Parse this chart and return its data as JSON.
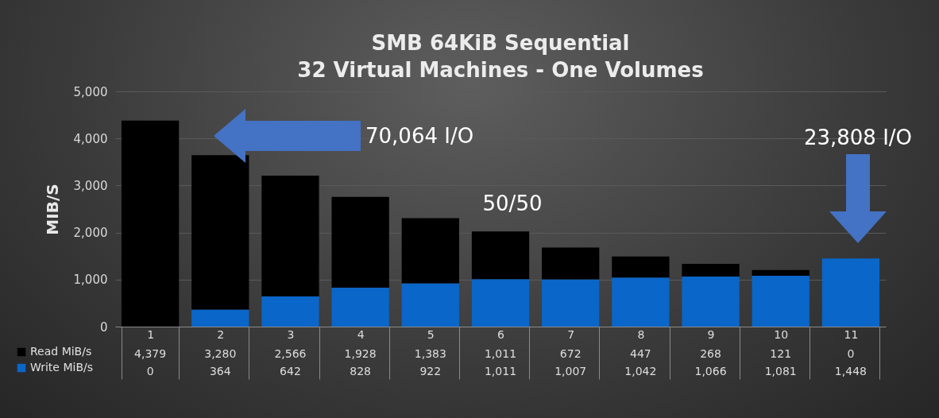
{
  "chart_data": {
    "type": "bar",
    "title": "SMB 64KiB Sequential",
    "subtitle": "32 Virtual Machines - One Volumes",
    "ylabel": "MIB/S",
    "categories": [
      "1",
      "2",
      "3",
      "4",
      "5",
      "6",
      "7",
      "8",
      "9",
      "10",
      "11"
    ],
    "stacked": true,
    "series": [
      {
        "name": "Write MiB/s",
        "color": "#0a66c8",
        "values": [
          0,
          364,
          642,
          828,
          922,
          1011,
          1007,
          1042,
          1066,
          1081,
          1448
        ],
        "value_labels": [
          "0",
          "364",
          "642",
          "828",
          "922",
          "1,011",
          "1,007",
          "1,042",
          "1,066",
          "1,081",
          "1,448"
        ]
      },
      {
        "name": "Read MiB/s",
        "color": "#000000",
        "values": [
          4379,
          3280,
          2566,
          1928,
          1383,
          1011,
          672,
          447,
          268,
          121,
          0
        ],
        "value_labels": [
          "4,379",
          "3,280",
          "2,566",
          "1,928",
          "1,383",
          "1,011",
          "672",
          "447",
          "268",
          "121",
          "0"
        ]
      }
    ],
    "ylim": [
      0,
      5000
    ],
    "yticks": [
      0,
      {
        "value": 1000,
        "label": "1,000"
      },
      {
        "value": 2000,
        "label": "2,000"
      },
      {
        "value": 3000,
        "label": "3,000"
      },
      {
        "value": 4000,
        "label": "4,000"
      },
      {
        "value": 5000,
        "label": "5,000"
      }
    ],
    "grid": "y",
    "legend": "bottom left",
    "annotations": [
      "70,064 I/O",
      "50/50",
      "23,808 I/O"
    ]
  }
}
